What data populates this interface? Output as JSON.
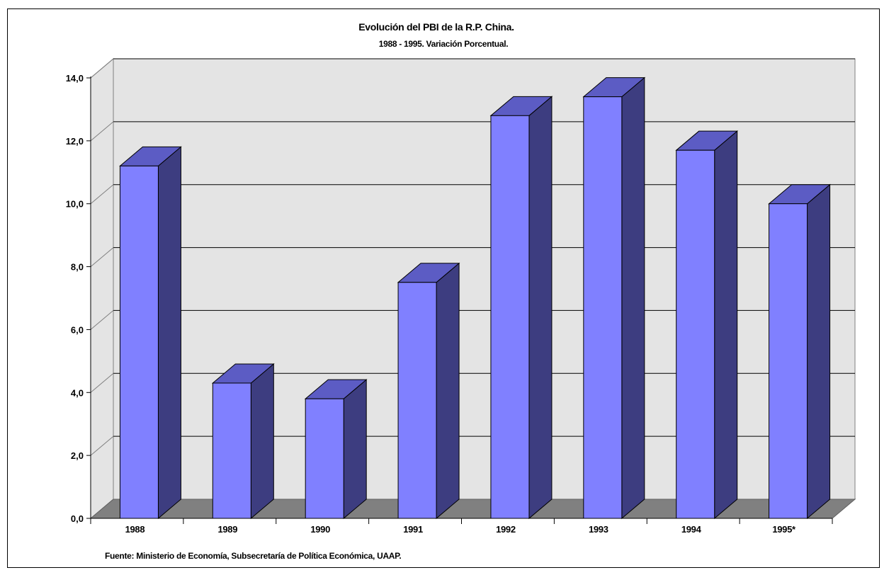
{
  "chart_data": {
    "type": "bar",
    "title": "Evolución del PBI de la R.P. China.",
    "subtitle": "1988 - 1995. Variación Porcentual.",
    "source": "Fuente: Ministerio de Economía, Subsecretaría de Política Económica, UAAP.",
    "categories": [
      "1988",
      "1989",
      "1990",
      "1991",
      "1992",
      "1993",
      "1994",
      "1995*"
    ],
    "values": [
      11.2,
      4.3,
      3.8,
      7.5,
      12.8,
      13.4,
      11.7,
      10.0
    ],
    "ylim": [
      0,
      14
    ],
    "yticks": [
      "0,0",
      "2,0",
      "4,0",
      "6,0",
      "8,0",
      "10,0",
      "12,0",
      "14,0"
    ],
    "grid": true,
    "colors": {
      "bar_front": "#8080ff",
      "bar_top": "#5c5cc4",
      "bar_side": "#3d3d80",
      "floor": "#808080",
      "wall": "#e4e4e4"
    }
  }
}
